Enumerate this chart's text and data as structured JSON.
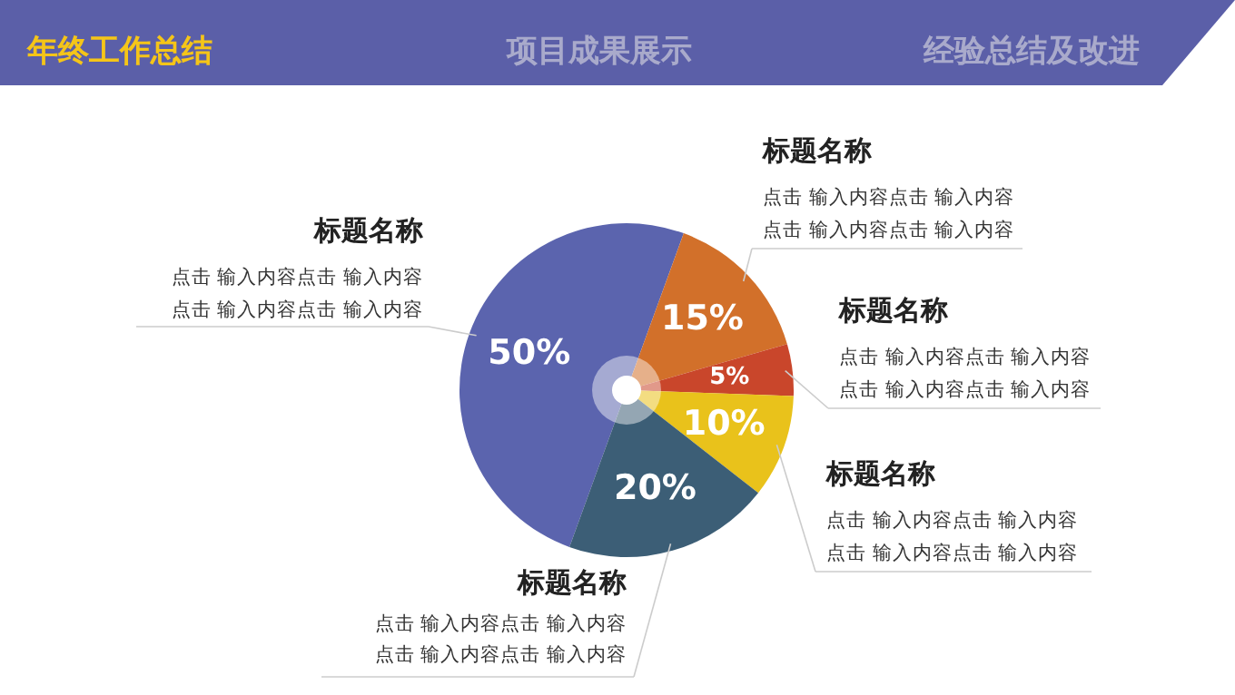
{
  "chart_data": {
    "type": "pie",
    "title": "年终工作总结",
    "categories": [
      "标题名称",
      "标题名称",
      "标题名称",
      "标题名称",
      "标题名称"
    ],
    "values": [
      50,
      15,
      5,
      10,
      20
    ],
    "colors": [
      "#5b64ae",
      "#d2702a",
      "#c9462b",
      "#e9c21b",
      "#3c5e76"
    ],
    "value_labels": [
      "50%",
      "15%",
      "5%",
      "10%",
      "20%"
    ],
    "annotations": [
      "项目成果展示",
      "经验总结及改进",
      "点击 输入内容点击 输入内容",
      "点击 输入内容点击 输入内容",
      "点击 输入内容点击 输入内容",
      "点击 输入内容点击 输入内容",
      "点击 输入内容点击 输入内容",
      "点击 输入内容点击 输入内容",
      "点击 输入内容点击 输入内容",
      "点击 输入内容点击 输入内容",
      "点击 输入内容点击 输入内容",
      "点击 输入内容点击 输入内容"
    ],
    "legend": false
  }
}
